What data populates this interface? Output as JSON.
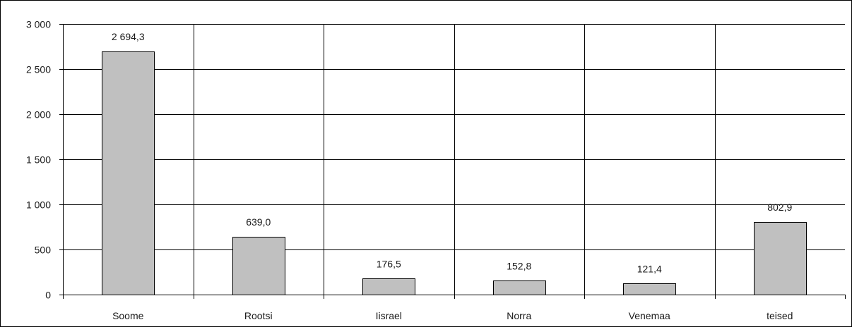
{
  "chart_data": {
    "type": "bar",
    "title": "",
    "xlabel": "",
    "ylabel": "",
    "categories": [
      "Soome",
      "Rootsi",
      "Iisrael",
      "Norra",
      "Venemaa",
      "teised"
    ],
    "values": [
      2694.3,
      639.0,
      176.5,
      152.8,
      121.4,
      802.9
    ],
    "value_labels": [
      "2 694,3",
      "639,0",
      "176,5",
      "152,8",
      "121,4",
      "802,9"
    ],
    "ylim": [
      0,
      3000
    ],
    "yticks": [
      0,
      500,
      1000,
      1500,
      2000,
      2500,
      3000
    ],
    "ytick_labels": [
      "0",
      "500",
      "1 000",
      "1 500",
      "2 000",
      "2 500",
      "3 000"
    ],
    "grid": true,
    "legend": "none",
    "colors": {
      "bar_fill": "#c0c0c0",
      "bar_stroke": "#000000",
      "grid": "#000000",
      "text": "#1a1a1a"
    }
  }
}
